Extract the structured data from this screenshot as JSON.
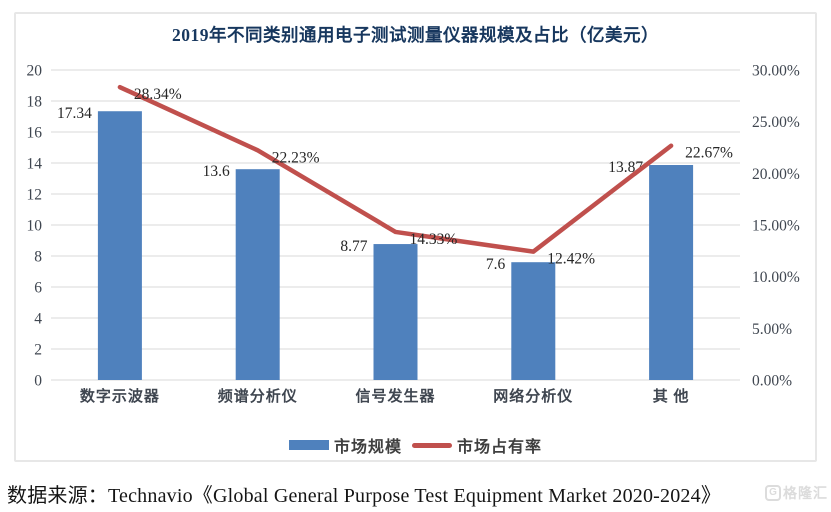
{
  "chart_data": {
    "type": "bar+line combo",
    "title": "2019年不同类别通用电子测试测量仪器规模及占比（亿美元）",
    "categories": [
      "数字示波器",
      "频谱分析仪",
      "信号发生器",
      "网络分析仪",
      "其 他"
    ],
    "series": [
      {
        "name": "市场规模",
        "type": "bar",
        "axis": "left",
        "color": "#4F81BD",
        "values": [
          17.34,
          13.6,
          8.77,
          7.6,
          13.87
        ],
        "labels": [
          "17.34",
          "13.6",
          "8.77",
          "7.6",
          "13.87"
        ]
      },
      {
        "name": "市场占有率",
        "type": "line",
        "axis": "right",
        "color": "#C0504D",
        "values": [
          28.34,
          22.23,
          14.33,
          12.42,
          22.67
        ],
        "labels": [
          "28.34%",
          "22.23%",
          "14.33%",
          "12.42%",
          "22.67%"
        ]
      }
    ],
    "y_left": {
      "min": 0,
      "max": 20,
      "step": 2,
      "tick_labels": [
        "0",
        "2",
        "4",
        "6",
        "8",
        "10",
        "12",
        "14",
        "16",
        "18",
        "20"
      ]
    },
    "y_right": {
      "min": 0,
      "max": 30,
      "step": 5,
      "tick_labels": [
        "0.00%",
        "5.00%",
        "10.00%",
        "15.00%",
        "20.00%",
        "25.00%",
        "30.00%"
      ]
    },
    "grid": true,
    "gridline_color": "#d9d9d9",
    "legend_position": "bottom-center"
  },
  "footer": {
    "source_text": "数据来源：Technavio《Global General Purpose Test Equipment Market 2020-2024》"
  },
  "watermark": {
    "icon_letter": "G",
    "text": "格隆汇"
  }
}
